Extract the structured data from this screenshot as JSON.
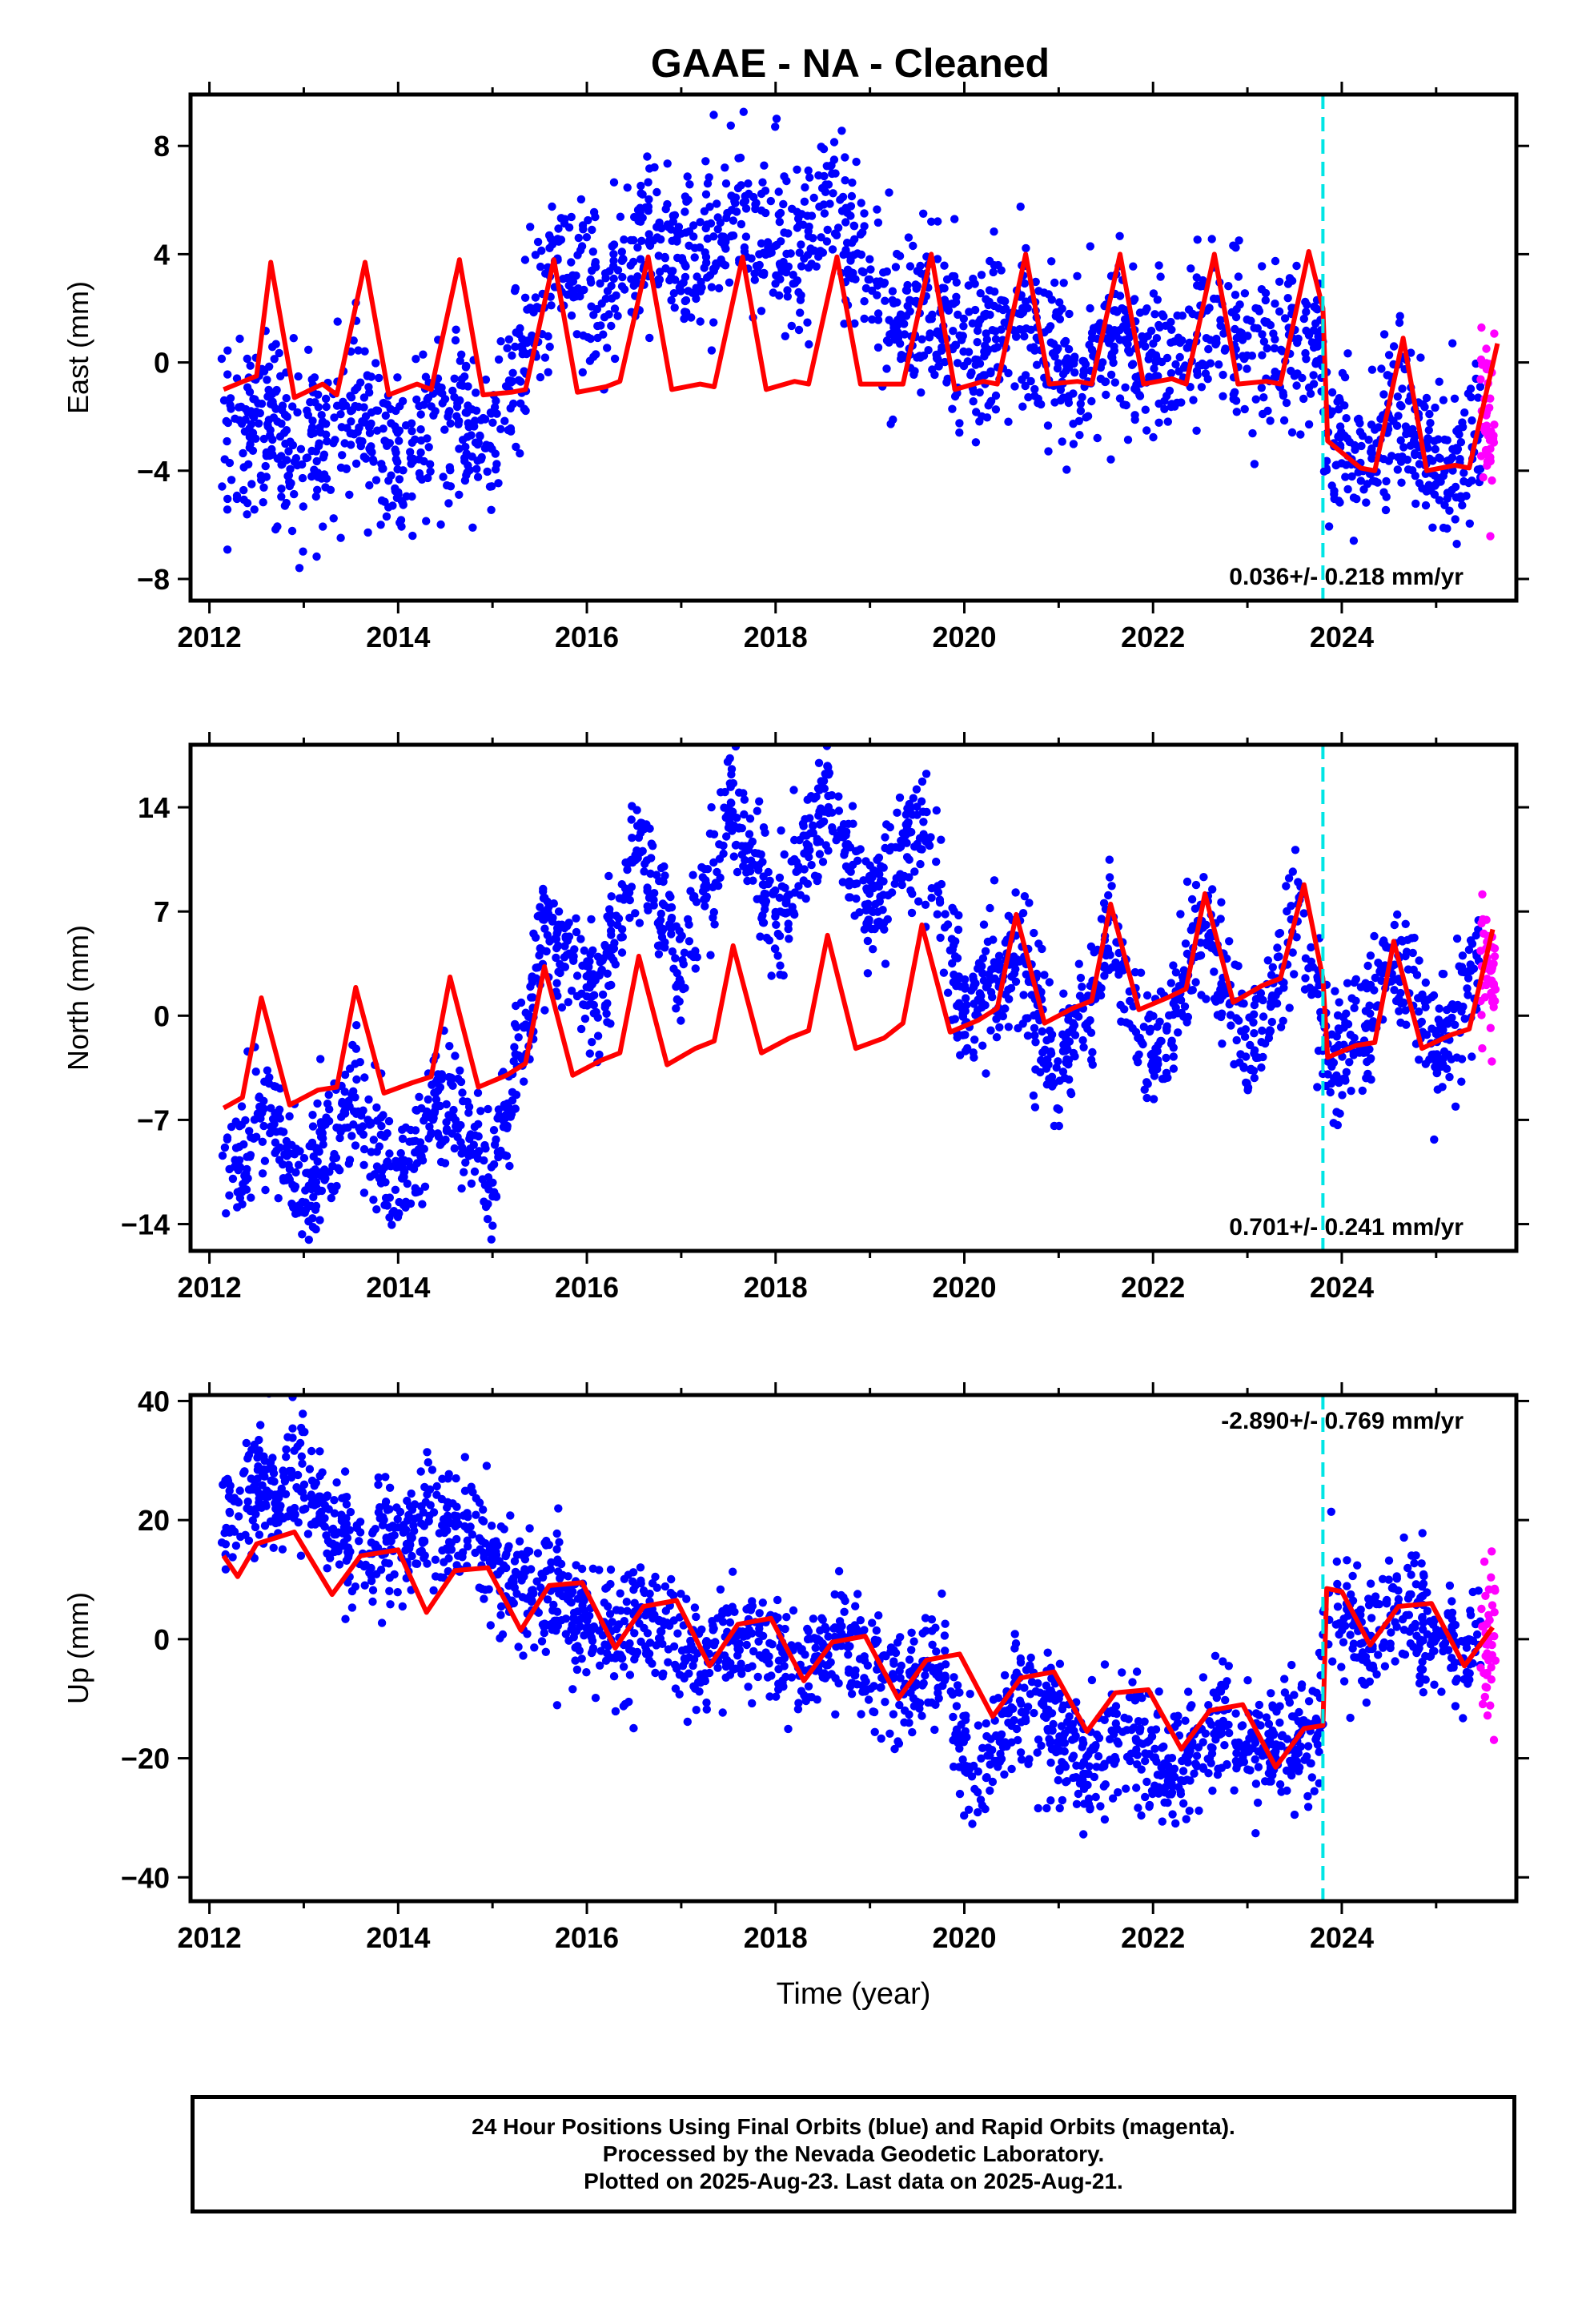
{
  "title": "GAAE  - NA - Cleaned",
  "colors": {
    "final": "#0000ff",
    "rapid": "#ff00ff",
    "model": "#ff0000",
    "event": "#00e5e5"
  },
  "caption": [
    "24 Hour Positions Using Final Orbits (blue) and Rapid Orbits (magenta).",
    "Processed by the Nevada Geodetic Laboratory.",
    "Plotted on 2025-Aug-23. Last data on 2025-Aug-21."
  ],
  "chart_data": [
    {
      "type": "scatter",
      "ylabel": "East (mm)",
      "xlabel": "",
      "xlim": [
        2011.8,
        2025.85
      ],
      "ylim": [
        -8.8,
        9.9
      ],
      "yticks": [
        -8,
        -4,
        0,
        4,
        8
      ],
      "xticks": [
        2012,
        2014,
        2016,
        2018,
        2020,
        2022,
        2024
      ],
      "rate_label": "0.036+/- 0.218 mm/yr",
      "rate_position": "bottom-right",
      "event_line_x": 2023.8,
      "data_range": [
        2012.13,
        2025.47
      ],
      "rapid_range": [
        2025.47,
        2025.63
      ],
      "model": [
        [
          2012.15,
          -1.0
        ],
        [
          2012.5,
          -0.5
        ],
        [
          2012.65,
          3.7
        ],
        [
          2012.9,
          -1.3
        ],
        [
          2013.2,
          -0.8
        ],
        [
          2013.35,
          -1.2
        ],
        [
          2013.65,
          3.7
        ],
        [
          2013.9,
          -1.2
        ],
        [
          2014.2,
          -0.8
        ],
        [
          2014.35,
          -1.0
        ],
        [
          2014.65,
          3.8
        ],
        [
          2014.9,
          -1.2
        ],
        [
          2015.2,
          -1.1
        ],
        [
          2015.35,
          -1.0
        ],
        [
          2015.65,
          3.8
        ],
        [
          2015.9,
          -1.1
        ],
        [
          2016.2,
          -0.9
        ],
        [
          2016.35,
          -0.7
        ],
        [
          2016.65,
          3.9
        ],
        [
          2016.9,
          -1.0
        ],
        [
          2017.2,
          -0.8
        ],
        [
          2017.35,
          -0.9
        ],
        [
          2017.65,
          3.9
        ],
        [
          2017.9,
          -1.0
        ],
        [
          2018.2,
          -0.7
        ],
        [
          2018.35,
          -0.8
        ],
        [
          2018.65,
          3.9
        ],
        [
          2018.9,
          -0.8
        ],
        [
          2019.2,
          -0.8
        ],
        [
          2019.35,
          -0.8
        ],
        [
          2019.65,
          4.0
        ],
        [
          2019.9,
          -1.0
        ],
        [
          2020.2,
          -0.7
        ],
        [
          2020.35,
          -0.8
        ],
        [
          2020.65,
          4.0
        ],
        [
          2020.9,
          -0.8
        ],
        [
          2021.2,
          -0.7
        ],
        [
          2021.35,
          -0.8
        ],
        [
          2021.65,
          4.0
        ],
        [
          2021.9,
          -0.8
        ],
        [
          2022.2,
          -0.6
        ],
        [
          2022.35,
          -0.8
        ],
        [
          2022.65,
          4.0
        ],
        [
          2022.9,
          -0.8
        ],
        [
          2023.2,
          -0.7
        ],
        [
          2023.35,
          -0.8
        ],
        [
          2023.65,
          4.1
        ],
        [
          2023.8,
          2.0
        ],
        [
          2023.85,
          -2.9
        ],
        [
          2024.2,
          -3.9
        ],
        [
          2024.35,
          -4.0
        ],
        [
          2024.65,
          0.9
        ],
        [
          2024.9,
          -4.0
        ],
        [
          2025.2,
          -3.8
        ],
        [
          2025.35,
          -3.9
        ],
        [
          2025.65,
          0.7
        ]
      ],
      "cloud": {
        "seed": 11,
        "n": 2100,
        "amp": 2.2,
        "sigma": 1.4,
        "centers": [
          [
            2012.1,
            -3.0
          ],
          [
            2012.5,
            -2.2
          ],
          [
            2013.0,
            -3.8
          ],
          [
            2013.6,
            -1.5
          ],
          [
            2014.0,
            -4.0
          ],
          [
            2014.6,
            -1.8
          ],
          [
            2015.0,
            -3.2
          ],
          [
            2015.6,
            3.5
          ],
          [
            2016.2,
            2.5
          ],
          [
            2016.6,
            5.0
          ],
          [
            2017.2,
            3.6
          ],
          [
            2017.6,
            6.0
          ],
          [
            2018.2,
            3.5
          ],
          [
            2018.6,
            6.0
          ],
          [
            2019.2,
            1.5
          ],
          [
            2019.6,
            2.0
          ],
          [
            2020.2,
            0.5
          ],
          [
            2020.6,
            1.5
          ],
          [
            2021.2,
            -0.5
          ],
          [
            2021.6,
            1.0
          ],
          [
            2022.2,
            -0.5
          ],
          [
            2022.6,
            1.5
          ],
          [
            2023.2,
            0.0
          ],
          [
            2023.78,
            1.0
          ],
          [
            2023.83,
            -2.8
          ],
          [
            2024.2,
            -4.0
          ],
          [
            2024.6,
            -2.0
          ],
          [
            2025.2,
            -4.0
          ],
          [
            2025.5,
            -2.5
          ]
        ]
      }
    },
    {
      "type": "scatter",
      "ylabel": "North (mm)",
      "xlabel": "",
      "xlim": [
        2011.8,
        2025.85
      ],
      "ylim": [
        -15.8,
        18.2
      ],
      "yticks": [
        -14,
        -7,
        0,
        7,
        14
      ],
      "xticks": [
        2012,
        2014,
        2016,
        2018,
        2020,
        2022,
        2024
      ],
      "rate_label": "0.701+/- 0.241 mm/yr",
      "rate_position": "bottom-right",
      "event_line_x": 2023.8,
      "data_range": [
        2012.13,
        2025.47
      ],
      "rapid_range": [
        2025.47,
        2025.63
      ],
      "model": [
        [
          2012.15,
          -6.2
        ],
        [
          2012.35,
          -5.5
        ],
        [
          2012.55,
          1.2
        ],
        [
          2012.85,
          -6.0
        ],
        [
          2013.15,
          -5.0
        ],
        [
          2013.35,
          -4.8
        ],
        [
          2013.55,
          1.9
        ],
        [
          2013.85,
          -5.2
        ],
        [
          2014.15,
          -4.5
        ],
        [
          2014.35,
          -4.1
        ],
        [
          2014.55,
          2.6
        ],
        [
          2014.85,
          -4.8
        ],
        [
          2015.15,
          -4.0
        ],
        [
          2015.35,
          -3.2
        ],
        [
          2015.55,
          3.3
        ],
        [
          2015.85,
          -4.0
        ],
        [
          2016.15,
          -3.0
        ],
        [
          2016.35,
          -2.5
        ],
        [
          2016.55,
          4.0
        ],
        [
          2016.85,
          -3.3
        ],
        [
          2017.15,
          -2.2
        ],
        [
          2017.35,
          -1.7
        ],
        [
          2017.55,
          4.7
        ],
        [
          2017.85,
          -2.5
        ],
        [
          2018.15,
          -1.5
        ],
        [
          2018.35,
          -1.0
        ],
        [
          2018.55,
          5.4
        ],
        [
          2018.85,
          -2.2
        ],
        [
          2019.15,
          -1.5
        ],
        [
          2019.35,
          -0.5
        ],
        [
          2019.55,
          6.1
        ],
        [
          2019.85,
          -1.1
        ],
        [
          2020.15,
          -0.3
        ],
        [
          2020.35,
          0.5
        ],
        [
          2020.55,
          6.8
        ],
        [
          2020.85,
          -0.5
        ],
        [
          2021.15,
          0.5
        ],
        [
          2021.35,
          1.0
        ],
        [
          2021.55,
          7.5
        ],
        [
          2021.85,
          0.4
        ],
        [
          2022.15,
          1.2
        ],
        [
          2022.35,
          1.8
        ],
        [
          2022.55,
          8.2
        ],
        [
          2022.85,
          0.9
        ],
        [
          2023.15,
          2.0
        ],
        [
          2023.35,
          2.5
        ],
        [
          2023.6,
          8.8
        ],
        [
          2023.8,
          2.5
        ],
        [
          2023.85,
          -2.8
        ],
        [
          2024.15,
          -2.0
        ],
        [
          2024.35,
          -1.8
        ],
        [
          2024.55,
          5.0
        ],
        [
          2024.85,
          -2.2
        ],
        [
          2025.15,
          -1.3
        ],
        [
          2025.35,
          -0.9
        ],
        [
          2025.6,
          5.8
        ]
      ],
      "cloud": {
        "seed": 23,
        "n": 2100,
        "amp": 4.0,
        "sigma": 1.8,
        "centers": [
          [
            2012.1,
            -12.0
          ],
          [
            2012.55,
            -6.0
          ],
          [
            2013.0,
            -12.0
          ],
          [
            2013.55,
            -5.0
          ],
          [
            2014.0,
            -11.5
          ],
          [
            2014.55,
            -5.0
          ],
          [
            2015.0,
            -11.0
          ],
          [
            2015.55,
            6.0
          ],
          [
            2016.1,
            1.0
          ],
          [
            2016.55,
            12.0
          ],
          [
            2017.0,
            3.0
          ],
          [
            2017.55,
            14.0
          ],
          [
            2018.0,
            6.0
          ],
          [
            2018.55,
            15.0
          ],
          [
            2019.0,
            7.0
          ],
          [
            2019.55,
            13.0
          ],
          [
            2020.0,
            0.0
          ],
          [
            2020.55,
            4.0
          ],
          [
            2021.0,
            -4.0
          ],
          [
            2021.55,
            5.0
          ],
          [
            2022.0,
            -3.0
          ],
          [
            2022.55,
            6.0
          ],
          [
            2023.0,
            -3.0
          ],
          [
            2023.55,
            7.0
          ],
          [
            2023.83,
            -3.0
          ],
          [
            2024.2,
            -1.5
          ],
          [
            2024.55,
            4.0
          ],
          [
            2025.0,
            -2.0
          ],
          [
            2025.5,
            3.0
          ]
        ]
      }
    },
    {
      "type": "scatter",
      "ylabel": "Up (mm)",
      "xlabel": "Time (year)",
      "xlim": [
        2011.8,
        2025.85
      ],
      "ylim": [
        -44.0,
        41.0
      ],
      "yticks": [
        -40,
        -20,
        0,
        20,
        40
      ],
      "xticks": [
        2012,
        2014,
        2016,
        2018,
        2020,
        2022,
        2024
      ],
      "rate_label": "-2.890+/- 0.769 mm/yr",
      "rate_position": "top-right",
      "event_line_x": 2023.8,
      "data_range": [
        2012.13,
        2025.47
      ],
      "rapid_range": [
        2025.47,
        2025.63
      ],
      "model": [
        [
          2012.15,
          14.0
        ],
        [
          2012.3,
          10.5
        ],
        [
          2012.5,
          16.0
        ],
        [
          2012.9,
          18.0
        ],
        [
          2013.3,
          7.5
        ],
        [
          2013.6,
          14.0
        ],
        [
          2014.0,
          15.0
        ],
        [
          2014.3,
          4.5
        ],
        [
          2014.6,
          11.5
        ],
        [
          2014.95,
          12.0
        ],
        [
          2015.3,
          1.5
        ],
        [
          2015.6,
          9.0
        ],
        [
          2015.95,
          9.5
        ],
        [
          2016.3,
          -1.5
        ],
        [
          2016.6,
          5.5
        ],
        [
          2016.95,
          6.5
        ],
        [
          2017.3,
          -4.5
        ],
        [
          2017.6,
          2.5
        ],
        [
          2017.95,
          3.5
        ],
        [
          2018.3,
          -7.0
        ],
        [
          2018.6,
          -0.5
        ],
        [
          2018.95,
          0.5
        ],
        [
          2019.3,
          -10.0
        ],
        [
          2019.6,
          -3.5
        ],
        [
          2019.95,
          -2.5
        ],
        [
          2020.3,
          -13.0
        ],
        [
          2020.6,
          -6.5
        ],
        [
          2020.95,
          -5.5
        ],
        [
          2021.3,
          -15.5
        ],
        [
          2021.6,
          -9.0
        ],
        [
          2021.95,
          -8.5
        ],
        [
          2022.3,
          -18.5
        ],
        [
          2022.6,
          -12.0
        ],
        [
          2022.95,
          -11.0
        ],
        [
          2023.3,
          -21.5
        ],
        [
          2023.6,
          -15.0
        ],
        [
          2023.8,
          -14.5
        ],
        [
          2023.84,
          8.5
        ],
        [
          2024.0,
          8.0
        ],
        [
          2024.3,
          -1.0
        ],
        [
          2024.6,
          5.5
        ],
        [
          2024.95,
          6.0
        ],
        [
          2025.3,
          -4.5
        ],
        [
          2025.6,
          2.0
        ]
      ],
      "cloud": {
        "seed": 37,
        "n": 2100,
        "amp": 3.0,
        "sigma": 5.0,
        "centers": [
          [
            2012.1,
            22.0
          ],
          [
            2012.6,
            25.0
          ],
          [
            2013.0,
            27.0
          ],
          [
            2013.5,
            15.0
          ],
          [
            2014.0,
            18.0
          ],
          [
            2014.7,
            20.0
          ],
          [
            2015.2,
            10.0
          ],
          [
            2015.7,
            7.0
          ],
          [
            2016.2,
            0.0
          ],
          [
            2016.7,
            4.0
          ],
          [
            2017.2,
            -3.0
          ],
          [
            2017.7,
            1.0
          ],
          [
            2018.2,
            -5.0
          ],
          [
            2018.7,
            -2.0
          ],
          [
            2019.3,
            -8.0
          ],
          [
            2019.8,
            -4.0
          ],
          [
            2020.1,
            -25.0
          ],
          [
            2020.5,
            -12.0
          ],
          [
            2020.9,
            -12.0
          ],
          [
            2021.3,
            -22.0
          ],
          [
            2021.7,
            -14.0
          ],
          [
            2022.2,
            -22.0
          ],
          [
            2022.7,
            -15.0
          ],
          [
            2023.2,
            -18.0
          ],
          [
            2023.75,
            -16.0
          ],
          [
            2023.85,
            6.0
          ],
          [
            2024.3,
            0.0
          ],
          [
            2024.7,
            5.0
          ],
          [
            2025.2,
            -3.0
          ],
          [
            2025.5,
            0.0
          ]
        ]
      }
    }
  ]
}
